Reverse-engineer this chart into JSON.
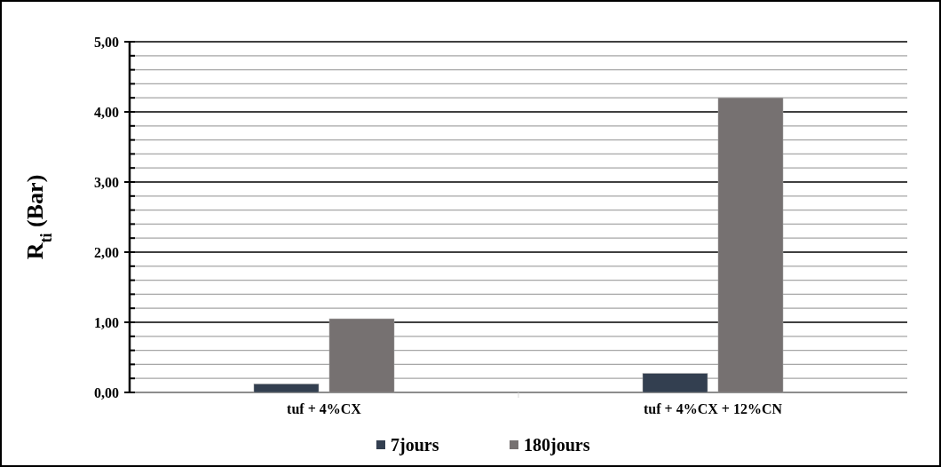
{
  "chart_data": {
    "type": "bar",
    "ylabel": "R$_{ti}$ (Bar)",
    "categories": [
      "tuf + 4%CX",
      "tuf + 4%CX + 12%CN"
    ],
    "series": [
      {
        "name": "7jours",
        "color": "#333f50",
        "values": [
          0.12,
          0.27
        ]
      },
      {
        "name": "180jours",
        "color": "#767171",
        "values": [
          1.05,
          4.2
        ]
      }
    ],
    "ylim": [
      0,
      5
    ],
    "yticks": [
      {
        "value": 0,
        "label": "0,00"
      },
      {
        "value": 0.2,
        "label": null
      },
      {
        "value": 0.4,
        "label": null
      },
      {
        "value": 0.6,
        "label": null
      },
      {
        "value": 0.8,
        "label": null
      },
      {
        "value": 1,
        "label": "1,00"
      },
      {
        "value": 1.2,
        "label": null
      },
      {
        "value": 1.4,
        "label": null
      },
      {
        "value": 1.6,
        "label": null
      },
      {
        "value": 1.8,
        "label": null
      },
      {
        "value": 2,
        "label": "2,00"
      },
      {
        "value": 2.2,
        "label": null
      },
      {
        "value": 2.4,
        "label": null
      },
      {
        "value": 2.6,
        "label": null
      },
      {
        "value": 2.8,
        "label": null
      },
      {
        "value": 3,
        "label": "3,00"
      },
      {
        "value": 3.2,
        "label": null
      },
      {
        "value": 3.4,
        "label": null
      },
      {
        "value": 3.6,
        "label": null
      },
      {
        "value": 3.8,
        "label": null
      },
      {
        "value": 4,
        "label": "4,00"
      },
      {
        "value": 4.2,
        "label": null
      },
      {
        "value": 4.4,
        "label": null
      },
      {
        "value": 4.6,
        "label": null
      },
      {
        "value": 4.8,
        "label": null
      },
      {
        "value": 5,
        "label": "5,00"
      }
    ],
    "grid": true,
    "legend": "bottom"
  }
}
